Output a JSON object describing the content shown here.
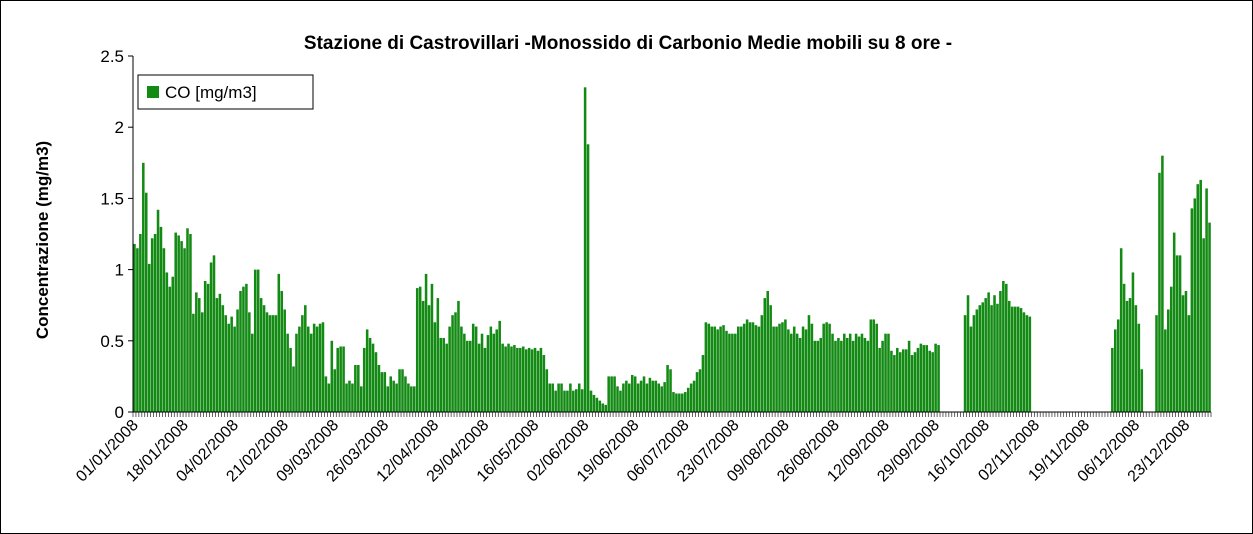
{
  "chart_data": {
    "type": "bar",
    "title": "Stazione di Castrovillari -Monossido di Carbonio Medie mobili su 8 ore -",
    "y_label": "Concentrazione (mg/m3)",
    "ylim": [
      0,
      2.5
    ],
    "yticks": [
      0,
      0.5,
      1,
      1.5,
      2,
      2.5
    ],
    "legend": "top-left",
    "categories": [
      "01/01/2008",
      null,
      null,
      null,
      null,
      null,
      null,
      null,
      null,
      null,
      null,
      null,
      null,
      null,
      null,
      null,
      null,
      "18/01/2008",
      null,
      null,
      null,
      null,
      null,
      null,
      null,
      null,
      null,
      null,
      null,
      null,
      null,
      null,
      null,
      null,
      "04/02/2008",
      null,
      null,
      null,
      null,
      null,
      null,
      null,
      null,
      null,
      null,
      null,
      null,
      null,
      null,
      null,
      null,
      "21/02/2008",
      null,
      null,
      null,
      null,
      null,
      null,
      null,
      null,
      null,
      null,
      null,
      null,
      null,
      null,
      null,
      null,
      "09/03/2008",
      null,
      null,
      null,
      null,
      null,
      null,
      null,
      null,
      null,
      null,
      null,
      null,
      null,
      null,
      null,
      null,
      "26/03/2008",
      null,
      null,
      null,
      null,
      null,
      null,
      null,
      null,
      null,
      null,
      null,
      null,
      null,
      null,
      null,
      null,
      "12/04/2008",
      null,
      null,
      null,
      null,
      null,
      null,
      null,
      null,
      null,
      null,
      null,
      null,
      null,
      null,
      null,
      null,
      "29/04/2008",
      null,
      null,
      null,
      null,
      null,
      null,
      null,
      null,
      null,
      null,
      null,
      null,
      null,
      null,
      null,
      null,
      "16/05/2008",
      null,
      null,
      null,
      null,
      null,
      null,
      null,
      null,
      null,
      null,
      null,
      null,
      null,
      null,
      null,
      null,
      "02/06/2008",
      null,
      null,
      null,
      null,
      null,
      null,
      null,
      null,
      null,
      null,
      null,
      null,
      null,
      null,
      null,
      null,
      "19/06/2008",
      null,
      null,
      null,
      null,
      null,
      null,
      null,
      null,
      null,
      null,
      null,
      null,
      null,
      null,
      null,
      null,
      "06/07/2008",
      null,
      null,
      null,
      null,
      null,
      null,
      null,
      null,
      null,
      null,
      null,
      null,
      null,
      null,
      null,
      null,
      "23/07/2008",
      null,
      null,
      null,
      null,
      null,
      null,
      null,
      null,
      null,
      null,
      null,
      null,
      null,
      null,
      null,
      null,
      "09/08/2008",
      null,
      null,
      null,
      null,
      null,
      null,
      null,
      null,
      null,
      null,
      null,
      null,
      null,
      null,
      null,
      null,
      "26/08/2008",
      null,
      null,
      null,
      null,
      null,
      null,
      null,
      null,
      null,
      null,
      null,
      null,
      null,
      null,
      null,
      null,
      "12/09/2008",
      null,
      null,
      null,
      null,
      null,
      null,
      null,
      null,
      null,
      null,
      null,
      null,
      null,
      null,
      null,
      null,
      "29/09/2008",
      null,
      null,
      null,
      null,
      null,
      null,
      null,
      null,
      null,
      null,
      null,
      null,
      null,
      null,
      null,
      null,
      "16/10/2008",
      null,
      null,
      null,
      null,
      null,
      null,
      null,
      null,
      null,
      null,
      null,
      null,
      null,
      null,
      null,
      null,
      "02/11/2008",
      null,
      null,
      null,
      null,
      null,
      null,
      null,
      null,
      null,
      null,
      null,
      null,
      null,
      null,
      null,
      null,
      "19/11/2008",
      null,
      null,
      null,
      null,
      null,
      null,
      null,
      null,
      null,
      null,
      null,
      null,
      null,
      null,
      null,
      null,
      "06/12/2008",
      null,
      null,
      null,
      null,
      null,
      null,
      null,
      null,
      null,
      null,
      null,
      null,
      null,
      null,
      null,
      null,
      "23/12/2008",
      null,
      null,
      null,
      null,
      null,
      null,
      null,
      null
    ],
    "series": [
      {
        "name": "CO  [mg/m3]",
        "color": "#138a13",
        "values": [
          1.18,
          1.15,
          1.25,
          1.75,
          1.54,
          1.04,
          1.22,
          1.25,
          1.42,
          1.3,
          1.15,
          0.98,
          0.88,
          0.95,
          1.26,
          1.24,
          1.2,
          1.15,
          1.29,
          1.25,
          0.69,
          0.84,
          0.8,
          0.7,
          0.92,
          0.9,
          1.05,
          1.1,
          0.8,
          0.83,
          0.75,
          0.68,
          0.62,
          0.67,
          0.6,
          0.72,
          0.85,
          0.88,
          0.9,
          0.7,
          0.55,
          1.0,
          1.0,
          0.8,
          0.75,
          0.7,
          0.68,
          0.68,
          0.68,
          0.97,
          0.85,
          0.72,
          0.55,
          0.45,
          0.32,
          0.55,
          0.6,
          0.68,
          0.75,
          0.6,
          0.55,
          0.62,
          0.6,
          0.62,
          0.63,
          0.25,
          0.2,
          0.5,
          0.3,
          0.45,
          0.46,
          0.46,
          0.2,
          0.22,
          0.2,
          0.33,
          0.33,
          0.18,
          0.45,
          0.58,
          0.52,
          0.48,
          0.42,
          0.33,
          0.28,
          0.28,
          0.18,
          0.25,
          0.22,
          0.2,
          0.3,
          0.3,
          0.25,
          0.2,
          0.18,
          0.18,
          0.87,
          0.88,
          0.78,
          0.97,
          0.75,
          0.9,
          0.63,
          0.8,
          0.52,
          0.52,
          0.48,
          0.6,
          0.68,
          0.7,
          0.78,
          0.6,
          0.55,
          0.5,
          0.5,
          0.62,
          0.6,
          0.48,
          0.55,
          0.45,
          0.54,
          0.6,
          0.55,
          0.58,
          0.64,
          0.48,
          0.46,
          0.48,
          0.46,
          0.47,
          0.45,
          0.45,
          0.46,
          0.44,
          0.45,
          0.44,
          0.45,
          0.43,
          0.45,
          0.4,
          0.3,
          0.2,
          0.2,
          0.15,
          0.2,
          0.2,
          0.15,
          0.15,
          0.2,
          0.15,
          0.16,
          0.2,
          0.16,
          2.28,
          1.88,
          0.15,
          0.12,
          0.1,
          0.08,
          0.06,
          0.05,
          0.25,
          0.25,
          0.25,
          0.18,
          0.15,
          0.2,
          0.22,
          0.2,
          0.26,
          0.25,
          0.2,
          0.22,
          0.25,
          0.2,
          0.24,
          0.22,
          0.22,
          0.2,
          0.18,
          0.21,
          0.33,
          0.3,
          0.14,
          0.13,
          0.13,
          0.13,
          0.14,
          0.17,
          0.2,
          0.22,
          0.28,
          0.3,
          0.4,
          0.63,
          0.62,
          0.6,
          0.6,
          0.58,
          0.6,
          0.61,
          0.57,
          0.55,
          0.55,
          0.55,
          0.6,
          0.6,
          0.62,
          0.65,
          0.63,
          0.63,
          0.61,
          0.6,
          0.68,
          0.8,
          0.85,
          0.75,
          0.6,
          0.6,
          0.62,
          0.63,
          0.65,
          0.58,
          0.55,
          0.6,
          0.55,
          0.52,
          0.6,
          0.58,
          0.68,
          0.62,
          0.5,
          0.5,
          0.52,
          0.62,
          0.63,
          0.62,
          0.55,
          0.5,
          0.52,
          0.5,
          0.55,
          0.52,
          0.55,
          0.5,
          0.55,
          0.53,
          0.55,
          0.52,
          0.5,
          0.65,
          0.65,
          0.62,
          0.45,
          0.5,
          0.55,
          0.55,
          0.43,
          0.4,
          0.45,
          0.42,
          0.44,
          0.44,
          0.5,
          0.4,
          0.42,
          0.45,
          0.48,
          0.47,
          0.47,
          0.43,
          0.42,
          0.48,
          0.47,
          null,
          null,
          null,
          null,
          null,
          null,
          null,
          null,
          0.68,
          0.82,
          0.6,
          0.68,
          0.72,
          0.75,
          0.77,
          0.8,
          0.84,
          0.75,
          0.82,
          0.76,
          0.85,
          0.92,
          0.9,
          0.78,
          0.74,
          0.74,
          0.74,
          0.73,
          0.7,
          0.68,
          0.67,
          null,
          null,
          null,
          null,
          null,
          null,
          null,
          null,
          null,
          null,
          null,
          null,
          null,
          null,
          null,
          null,
          null,
          null,
          null,
          null,
          null,
          null,
          null,
          null,
          null,
          null,
          null,
          0.45,
          0.58,
          0.65,
          1.15,
          0.9,
          0.78,
          0.8,
          0.98,
          0.75,
          0.62,
          0.3,
          null,
          null,
          null,
          null,
          0.68,
          1.68,
          1.8,
          0.58,
          0.72,
          0.88,
          1.26,
          1.1,
          1.1,
          0.82,
          0.85,
          0.68,
          1.43,
          1.5,
          1.6,
          1.63,
          1.22,
          1.57,
          1.33
        ]
      }
    ]
  }
}
